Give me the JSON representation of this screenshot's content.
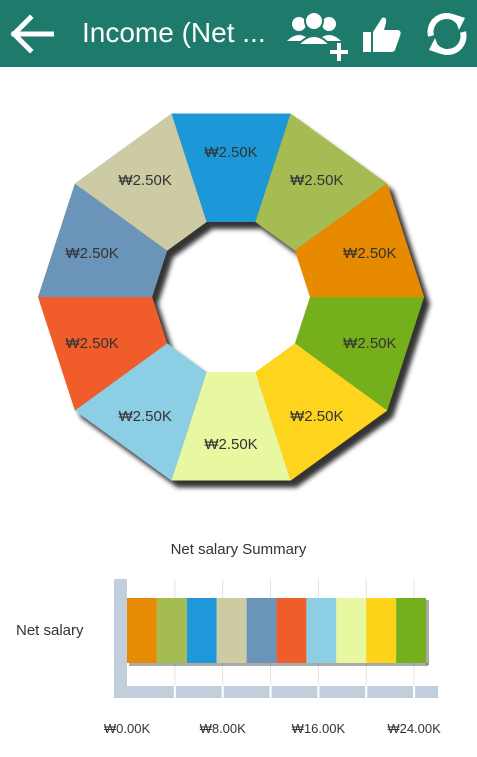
{
  "appbar": {
    "title": "Income (Net ...",
    "icons": [
      "back-arrow-icon",
      "add-group-icon",
      "thumbs-up-icon",
      "refresh-icon"
    ],
    "background": "#1e7a6a"
  },
  "chart_data": [
    {
      "type": "pie",
      "donut": true,
      "labels": [
        "₩2.50K",
        "₩2.50K",
        "₩2.50K",
        "₩2.50K",
        "₩2.50K",
        "₩2.50K",
        "₩2.50K",
        "₩2.50K",
        "₩2.50K",
        "₩2.50K"
      ],
      "values": [
        2500,
        2500,
        2500,
        2500,
        2500,
        2500,
        2500,
        2500,
        2500,
        2500
      ],
      "colors": [
        "#1e98d9",
        "#a5bc53",
        "#e78a05",
        "#74b01d",
        "#fed41a",
        "#e7f8a0",
        "#8ccfe5",
        "#f05d2c",
        "#6a95b8",
        "#cccba4"
      ]
    },
    {
      "type": "bar",
      "stacked": true,
      "orientation": "horizontal",
      "title": "Net salary Summary",
      "categories": [
        "Net salary"
      ],
      "series": [
        {
          "values": [
            2500
          ],
          "color": "#e78a05"
        },
        {
          "values": [
            2500
          ],
          "color": "#a5bc53"
        },
        {
          "values": [
            2500
          ],
          "color": "#1e98d9"
        },
        {
          "values": [
            2500
          ],
          "color": "#cccba4"
        },
        {
          "values": [
            2500
          ],
          "color": "#6a95b8"
        },
        {
          "values": [
            2500
          ],
          "color": "#f05d2c"
        },
        {
          "values": [
            2500
          ],
          "color": "#8ccfe5"
        },
        {
          "values": [
            2500
          ],
          "color": "#e7f8a0"
        },
        {
          "values": [
            2500
          ],
          "color": "#fed41a"
        },
        {
          "values": [
            2500
          ],
          "color": "#74b01d"
        }
      ],
      "xlim": [
        0,
        26000
      ],
      "xticks": [
        0,
        8000,
        16000,
        24000
      ],
      "xtick_labels": [
        "₩0.00K",
        "₩8.00K",
        "₩16.00K",
        "₩24.00K"
      ],
      "grid": true
    }
  ]
}
